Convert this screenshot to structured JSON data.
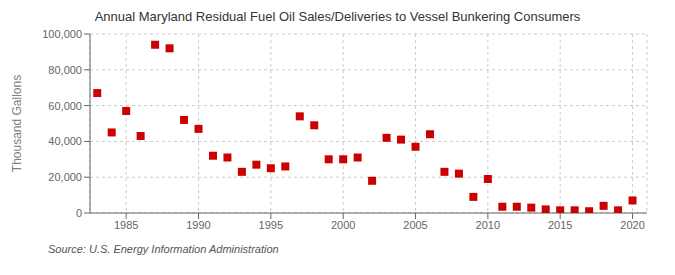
{
  "chart_data": {
    "type": "scatter",
    "title": "Annual Maryland Residual Fuel Oil Sales/Deliveries to Vessel Bunkering Consumers",
    "y_label": "Thousand Gallons",
    "annotations": [
      "Source: U.S. Energy Information Administration"
    ],
    "x": [
      1983,
      1984,
      1985,
      1986,
      1987,
      1988,
      1989,
      1990,
      1991,
      1992,
      1993,
      1994,
      1995,
      1996,
      1997,
      1998,
      1999,
      2000,
      2001,
      2002,
      2003,
      2004,
      2005,
      2006,
      2007,
      2008,
      2009,
      2010,
      2011,
      2012,
      2013,
      2014,
      2015,
      2016,
      2017,
      2018,
      2019,
      2020
    ],
    "values": [
      67000,
      45000,
      57000,
      43000,
      94000,
      92000,
      52000,
      47000,
      32000,
      31000,
      23000,
      27000,
      25000,
      26000,
      54000,
      49000,
      30000,
      30000,
      31000,
      18000,
      42000,
      41000,
      37000,
      44000,
      23000,
      22000,
      9000,
      19000,
      3500,
      3500,
      3000,
      2000,
      1500,
      1500,
      1000,
      4000,
      1500,
      7000
    ],
    "color": "#cc0000",
    "marker": "square",
    "xlim": [
      1982.5,
      2021
    ],
    "xticks": [
      1985,
      1990,
      1995,
      2000,
      2005,
      2010,
      2015,
      2020
    ],
    "ylim": [
      0,
      100000
    ],
    "yticks": [
      0,
      {
        "value": 20000,
        "label": "20,000"
      },
      {
        "value": 40000,
        "label": "40,000"
      },
      {
        "value": 60000,
        "label": "60,000"
      },
      {
        "value": 80000,
        "label": "80,000"
      },
      {
        "value": 100000,
        "label": "100,000"
      }
    ],
    "grid": true
  }
}
